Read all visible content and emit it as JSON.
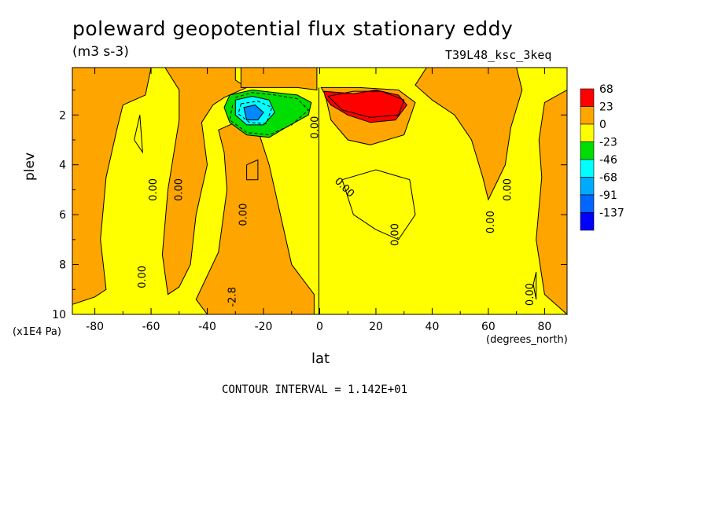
{
  "chart_data": {
    "type": "contour",
    "title": "poleward geopotential flux stationary eddy",
    "units": "(m3 s-3)",
    "run_id": "T39L48_ksc_3keq",
    "xlabel": "lat",
    "xunits": "(degrees_north)",
    "ylabel": "plev",
    "yunits": "(x1E4 Pa)",
    "xlim": [
      -88,
      88
    ],
    "ylim": [
      10,
      0.1
    ],
    "x_ticks": [
      "-80",
      "-60",
      "-40",
      "-20",
      "0",
      "20",
      "40",
      "60",
      "80"
    ],
    "y_ticks": [
      "2",
      "4",
      "6",
      "8",
      "10"
    ],
    "contour_interval": "CONTOUR INTERVAL = 1.142E+01",
    "contour_labels": [
      "0.00",
      "0.00",
      "0.00",
      "0.00",
      "0.00",
      "0.00",
      "0.00",
      "0.00",
      "0.00",
      "0.00",
      "-2.8"
    ],
    "colorbar": {
      "levels": [
        "68",
        "23",
        "0",
        "-23",
        "-46",
        "-68",
        "-91",
        "-137"
      ],
      "colors": [
        "#ff0000",
        "#ffa500",
        "#ffff00",
        "#00dd00",
        "#00ffff",
        "#00aaff",
        "#0066ff",
        "#0000ff"
      ]
    },
    "colors": {
      "positive": "#ffa500",
      "strong_positive": "#ff0000",
      "negative": "#ffff00",
      "moderate_negative": "#00dd00",
      "strong_negative": "#00ffff",
      "min_negative": "#0088ff"
    },
    "features": [
      {
        "sign": "positive",
        "lat": 22,
        "plev": 1.5,
        "peak": "68"
      },
      {
        "sign": "negative",
        "lat": -24,
        "plev": 2.0,
        "peak": "-137"
      }
    ]
  }
}
